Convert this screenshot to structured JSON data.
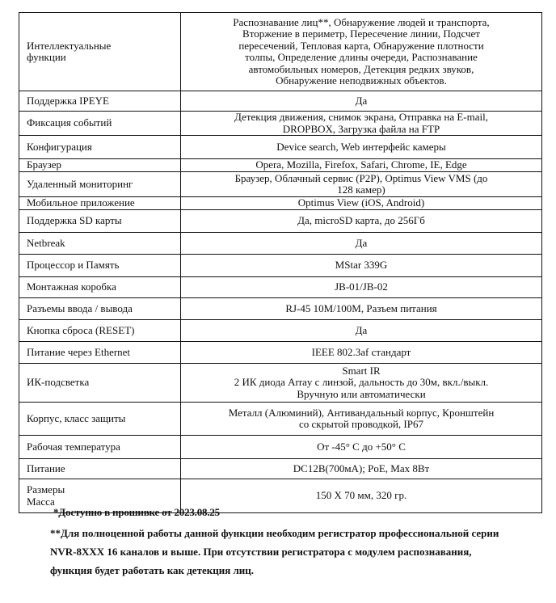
{
  "rows": [
    {
      "label": "Интеллектуальные\nфункции",
      "value": "Распознавание лиц**, Обнаружение людей и транспорта,\nВторжение в периметр, Пересечение линии,  Подсчет\nпересечений, Тепловая карта, Обнаружение плотности\nтолпы, Определение длины очереди, Распознавание\nавтомобильных номеров, Детекция редких звуков,\nОбнаружение неподвижных объектов."
    },
    {
      "label": "Поддержка IPEYE",
      "value": "Да"
    },
    {
      "label": "Фиксация событий",
      "value": "Детекция движения, снимок экрана, Отправка на E-mail,\nDROPBOX, Загрузка файла на FTP"
    },
    {
      "label": "Конфигурация",
      "value": "Device search, Web интерфейс камеры"
    },
    {
      "label": "Браузер",
      "value": "Opera, Mozilla, Firefox, Safari, Chrome, IE, Edge"
    },
    {
      "label": "Удаленный мониторинг",
      "value": "Браузер, Облачный сервис (P2P), Optimus View  VMS (до\n128 камер)"
    },
    {
      "label": "Мобильное приложение",
      "value": "Optimus View (iOS, Android)"
    },
    {
      "label": "Поддержка SD карты",
      "value": "Да, microSD карта, до 256Гб"
    },
    {
      "label": "Netbreak",
      "value": "Да"
    },
    {
      "label": "Процессор и Память",
      "value": "MStar  339G"
    },
    {
      "label": "Монтажная коробка",
      "value": "JB-01/JB-02"
    },
    {
      "label": "Разъемы ввода / вывода",
      "value": "RJ-45 10M/100M, Разъем питания"
    },
    {
      "label": "Кнопка сброса  (RESET)",
      "value": "Да"
    },
    {
      "label": "Питание через Ethernet",
      "value": "IEEE 802.3af стандарт"
    },
    {
      "label": "ИК-подсветка",
      "value": "Smart IR\n2 ИК диода Array с линзой, дальность до 30м, вкл./выкл.\nВручную или автоматически"
    },
    {
      "label": "Корпус, класс защиты",
      "value": "Металл (Алюминий),  Антивандальный корпус,  Кронштейн\nсо скрытой проводкой, IP67"
    },
    {
      "label": "Рабочая температура",
      "value": "От  -45° C до +50° C"
    },
    {
      "label": "Питание",
      "value": "DC12В(700мА); PoE, Max 8Вт"
    },
    {
      "label": "Размеры\nМасса",
      "value": "150 X 70 мм, 320 гр."
    }
  ],
  "notes": {
    "note1": "*Доступно в прошивке от 2023.08.25",
    "note2_line1": "**Для полноценной работы данной функции необходим регистратор профессиональной серии",
    "note2_line2": "NVR-8XXX 16 каналов и выше. При отсутствии регистратора с модулем распознавания,",
    "note2_line3": "функция будет работать как детекция лиц."
  }
}
